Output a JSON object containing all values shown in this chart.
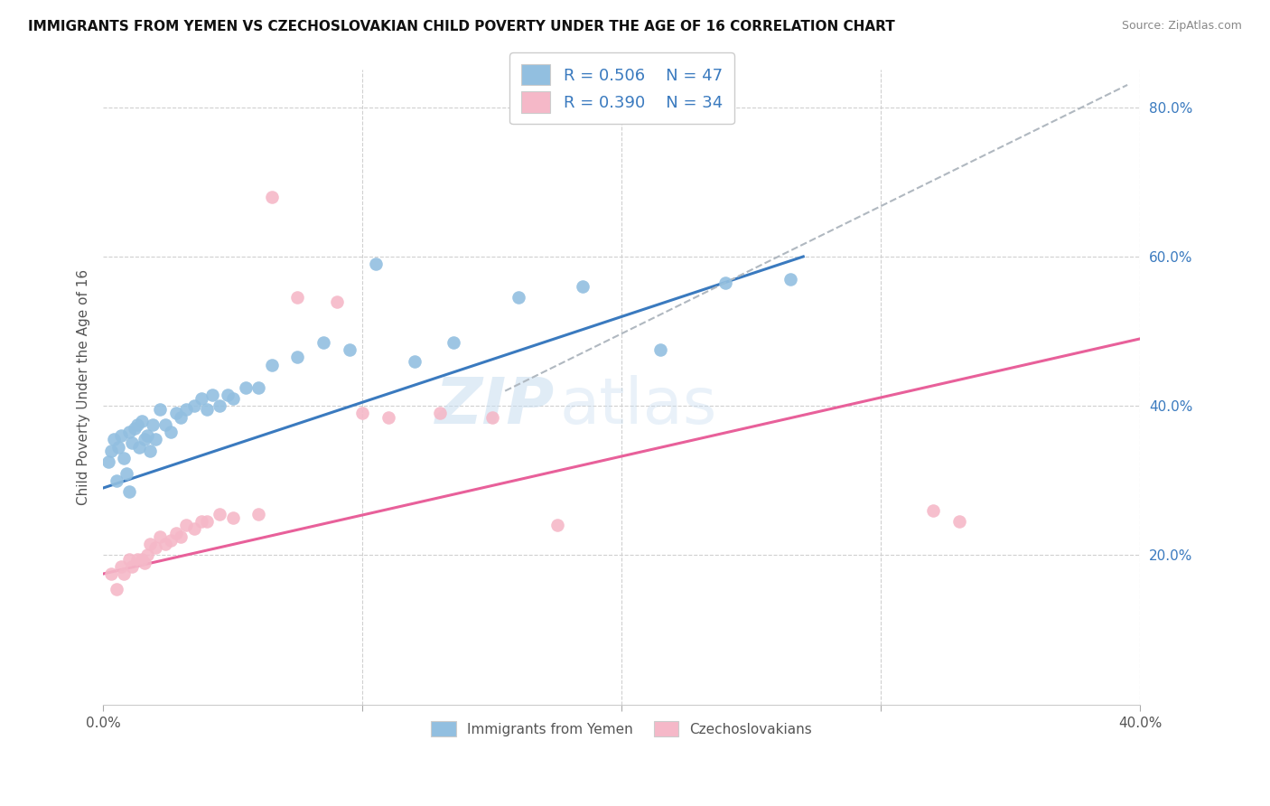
{
  "title": "IMMIGRANTS FROM YEMEN VS CZECHOSLOVAKIAN CHILD POVERTY UNDER THE AGE OF 16 CORRELATION CHART",
  "source": "Source: ZipAtlas.com",
  "ylabel": "Child Poverty Under the Age of 16",
  "xlim": [
    0.0,
    0.4
  ],
  "ylim": [
    0.0,
    0.85
  ],
  "y_ticks_right": [
    0.2,
    0.4,
    0.6,
    0.8
  ],
  "y_tick_labels_right": [
    "20.0%",
    "40.0%",
    "60.0%",
    "80.0%"
  ],
  "blue_color": "#92bfe0",
  "pink_color": "#f5b8c8",
  "blue_line_color": "#3a7abf",
  "pink_line_color": "#e8609a",
  "dashed_line_color": "#b0b8c0",
  "watermark_zip": "ZIP",
  "watermark_atlas": "atlas",
  "blue_scatter_x": [
    0.002,
    0.003,
    0.004,
    0.005,
    0.006,
    0.007,
    0.008,
    0.009,
    0.01,
    0.01,
    0.011,
    0.012,
    0.013,
    0.014,
    0.015,
    0.016,
    0.017,
    0.018,
    0.019,
    0.02,
    0.022,
    0.024,
    0.026,
    0.028,
    0.03,
    0.032,
    0.035,
    0.038,
    0.04,
    0.042,
    0.045,
    0.048,
    0.05,
    0.055,
    0.06,
    0.065,
    0.075,
    0.085,
    0.095,
    0.105,
    0.12,
    0.135,
    0.16,
    0.185,
    0.215,
    0.24,
    0.265
  ],
  "blue_scatter_y": [
    0.325,
    0.34,
    0.355,
    0.3,
    0.345,
    0.36,
    0.33,
    0.31,
    0.365,
    0.285,
    0.35,
    0.37,
    0.375,
    0.345,
    0.38,
    0.355,
    0.36,
    0.34,
    0.375,
    0.355,
    0.395,
    0.375,
    0.365,
    0.39,
    0.385,
    0.395,
    0.4,
    0.41,
    0.395,
    0.415,
    0.4,
    0.415,
    0.41,
    0.425,
    0.425,
    0.455,
    0.465,
    0.485,
    0.475,
    0.59,
    0.46,
    0.485,
    0.545,
    0.56,
    0.475,
    0.565,
    0.57
  ],
  "pink_scatter_x": [
    0.003,
    0.005,
    0.007,
    0.008,
    0.01,
    0.011,
    0.013,
    0.015,
    0.016,
    0.017,
    0.018,
    0.02,
    0.022,
    0.024,
    0.026,
    0.028,
    0.03,
    0.032,
    0.035,
    0.038,
    0.04,
    0.045,
    0.05,
    0.06,
    0.065,
    0.075,
    0.09,
    0.1,
    0.11,
    0.13,
    0.15,
    0.175,
    0.32,
    0.33
  ],
  "pink_scatter_y": [
    0.175,
    0.155,
    0.185,
    0.175,
    0.195,
    0.185,
    0.195,
    0.195,
    0.19,
    0.2,
    0.215,
    0.21,
    0.225,
    0.215,
    0.22,
    0.23,
    0.225,
    0.24,
    0.235,
    0.245,
    0.245,
    0.255,
    0.25,
    0.255,
    0.68,
    0.545,
    0.54,
    0.39,
    0.385,
    0.39,
    0.385,
    0.24,
    0.26,
    0.245
  ],
  "blue_trend_x": [
    0.0,
    0.27
  ],
  "blue_trend_y": [
    0.29,
    0.6
  ],
  "pink_trend_x": [
    0.0,
    0.4
  ],
  "pink_trend_y": [
    0.175,
    0.49
  ],
  "dashed_trend_x": [
    0.155,
    0.395
  ],
  "dashed_trend_y": [
    0.42,
    0.83
  ]
}
